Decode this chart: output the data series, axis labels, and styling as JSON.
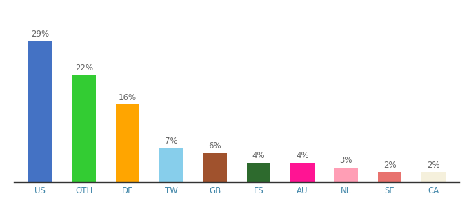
{
  "categories": [
    "US",
    "OTH",
    "DE",
    "TW",
    "GB",
    "ES",
    "AU",
    "NL",
    "SE",
    "CA"
  ],
  "values": [
    29,
    22,
    16,
    7,
    6,
    4,
    4,
    3,
    2,
    2
  ],
  "bar_colors": [
    "#4472c4",
    "#33cc33",
    "#ffa500",
    "#87ceeb",
    "#a0522d",
    "#2d6a2d",
    "#ff1493",
    "#ff9eb5",
    "#e8726e",
    "#f5f0dc"
  ],
  "ylim": [
    0,
    34
  ],
  "background_color": "#ffffff",
  "label_fontsize": 8.5,
  "tick_fontsize": 8.5,
  "bar_width": 0.55
}
